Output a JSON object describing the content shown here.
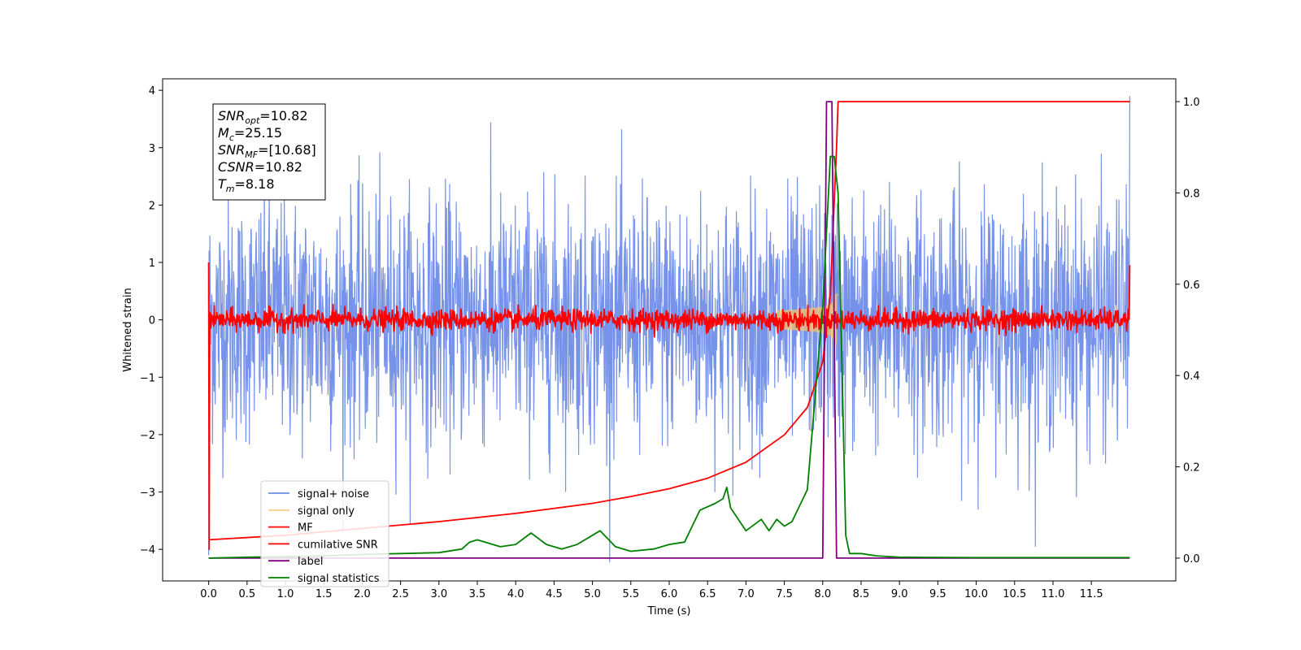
{
  "chart_data": {
    "type": "line",
    "title": "",
    "xlabel": "Time (s)",
    "ylabel": "Whitened strain",
    "y2label": "",
    "xlim": [
      -0.6,
      12.6
    ],
    "ylim": [
      -4.55,
      4.2
    ],
    "y2lim": [
      -0.05,
      1.05
    ],
    "xticks": [
      "0.0",
      "0.5",
      "1.0",
      "1.5",
      "2.0",
      "2.5",
      "3.0",
      "3.5",
      "4.0",
      "4.5",
      "5.0",
      "5.5",
      "6.0",
      "6.5",
      "7.0",
      "7.5",
      "8.0",
      "8.5",
      "9.0",
      "9.5",
      "10.0",
      "10.5",
      "11.0",
      "11.5"
    ],
    "yticks": [
      "4",
      "3",
      "2",
      "1",
      "0",
      "−1",
      "−2",
      "−3",
      "−4"
    ],
    "y2ticks": [
      "1.0",
      "0.8",
      "0.6",
      "0.4",
      "0.2",
      "0.0"
    ],
    "grid": false,
    "legend_position": "lower-left",
    "info_box": {
      "lines": [
        {
          "sym": "SNR",
          "sub": "opt",
          "val": "=10.82"
        },
        {
          "sym": "M",
          "sub": "c",
          "val": "=25.15"
        },
        {
          "sym": "SNR",
          "sub": "MF",
          "val": "=[10.68]"
        },
        {
          "sym": "CSNR",
          "sub": "",
          "val": "=10.82"
        },
        {
          "sym": "T",
          "sub": "m",
          "val": "=8.18"
        }
      ]
    },
    "series": [
      {
        "name": "signal+ noise",
        "color": "#6f8de8",
        "axis": "left",
        "style": "noise",
        "amplitude": 1.05,
        "x_range": [
          0,
          12.0
        ]
      },
      {
        "name": "signal only",
        "color": "#f5c26b",
        "axis": "left",
        "style": "chirp",
        "merger_time": 8.18
      },
      {
        "name": "MF",
        "color": "#ff0000",
        "axis": "left",
        "style": "noise",
        "amplitude": 0.09,
        "x_range": [
          0,
          12.0
        ]
      },
      {
        "name": "cumilative SNR",
        "color": "#ff0000",
        "axis": "right",
        "x": [
          0.0,
          1.0,
          2.0,
          3.0,
          4.0,
          5.0,
          5.5,
          6.0,
          6.5,
          7.0,
          7.5,
          7.8,
          8.0,
          8.1,
          8.18,
          8.2,
          12.0
        ],
        "y": [
          0.04,
          0.05,
          0.065,
          0.08,
          0.098,
          0.12,
          0.135,
          0.152,
          0.175,
          0.21,
          0.27,
          0.33,
          0.43,
          0.58,
          0.9,
          1.0,
          1.0
        ]
      },
      {
        "name": "label",
        "color": "#800080",
        "axis": "right",
        "x": [
          0.0,
          8.0,
          8.05,
          8.12,
          8.18,
          12.0
        ],
        "y": [
          0.0,
          0.0,
          1.0,
          1.0,
          0.0,
          0.0
        ]
      },
      {
        "name": "signal statistics",
        "color": "#008000",
        "axis": "right",
        "x": [
          0.0,
          0.5,
          1.0,
          1.5,
          2.0,
          2.5,
          3.0,
          3.3,
          3.4,
          3.5,
          3.8,
          4.0,
          4.2,
          4.4,
          4.6,
          4.8,
          5.0,
          5.1,
          5.3,
          5.5,
          5.8,
          6.0,
          6.2,
          6.3,
          6.4,
          6.6,
          6.7,
          6.75,
          6.8,
          6.9,
          7.0,
          7.2,
          7.3,
          7.4,
          7.5,
          7.6,
          7.8,
          7.9,
          8.0,
          8.1,
          8.15,
          8.2,
          8.3,
          8.35,
          8.5,
          8.7,
          9.0,
          10.0,
          11.0,
          12.0
        ],
        "y": [
          0.0,
          0.002,
          0.003,
          0.005,
          0.008,
          0.01,
          0.012,
          0.02,
          0.035,
          0.04,
          0.025,
          0.03,
          0.055,
          0.03,
          0.02,
          0.03,
          0.05,
          0.06,
          0.025,
          0.015,
          0.02,
          0.03,
          0.035,
          0.07,
          0.105,
          0.12,
          0.13,
          0.155,
          0.11,
          0.085,
          0.06,
          0.085,
          0.06,
          0.085,
          0.07,
          0.08,
          0.15,
          0.35,
          0.55,
          0.88,
          0.88,
          0.8,
          0.05,
          0.01,
          0.01,
          0.005,
          0.002,
          0.001,
          0.001,
          0.001
        ]
      }
    ]
  }
}
